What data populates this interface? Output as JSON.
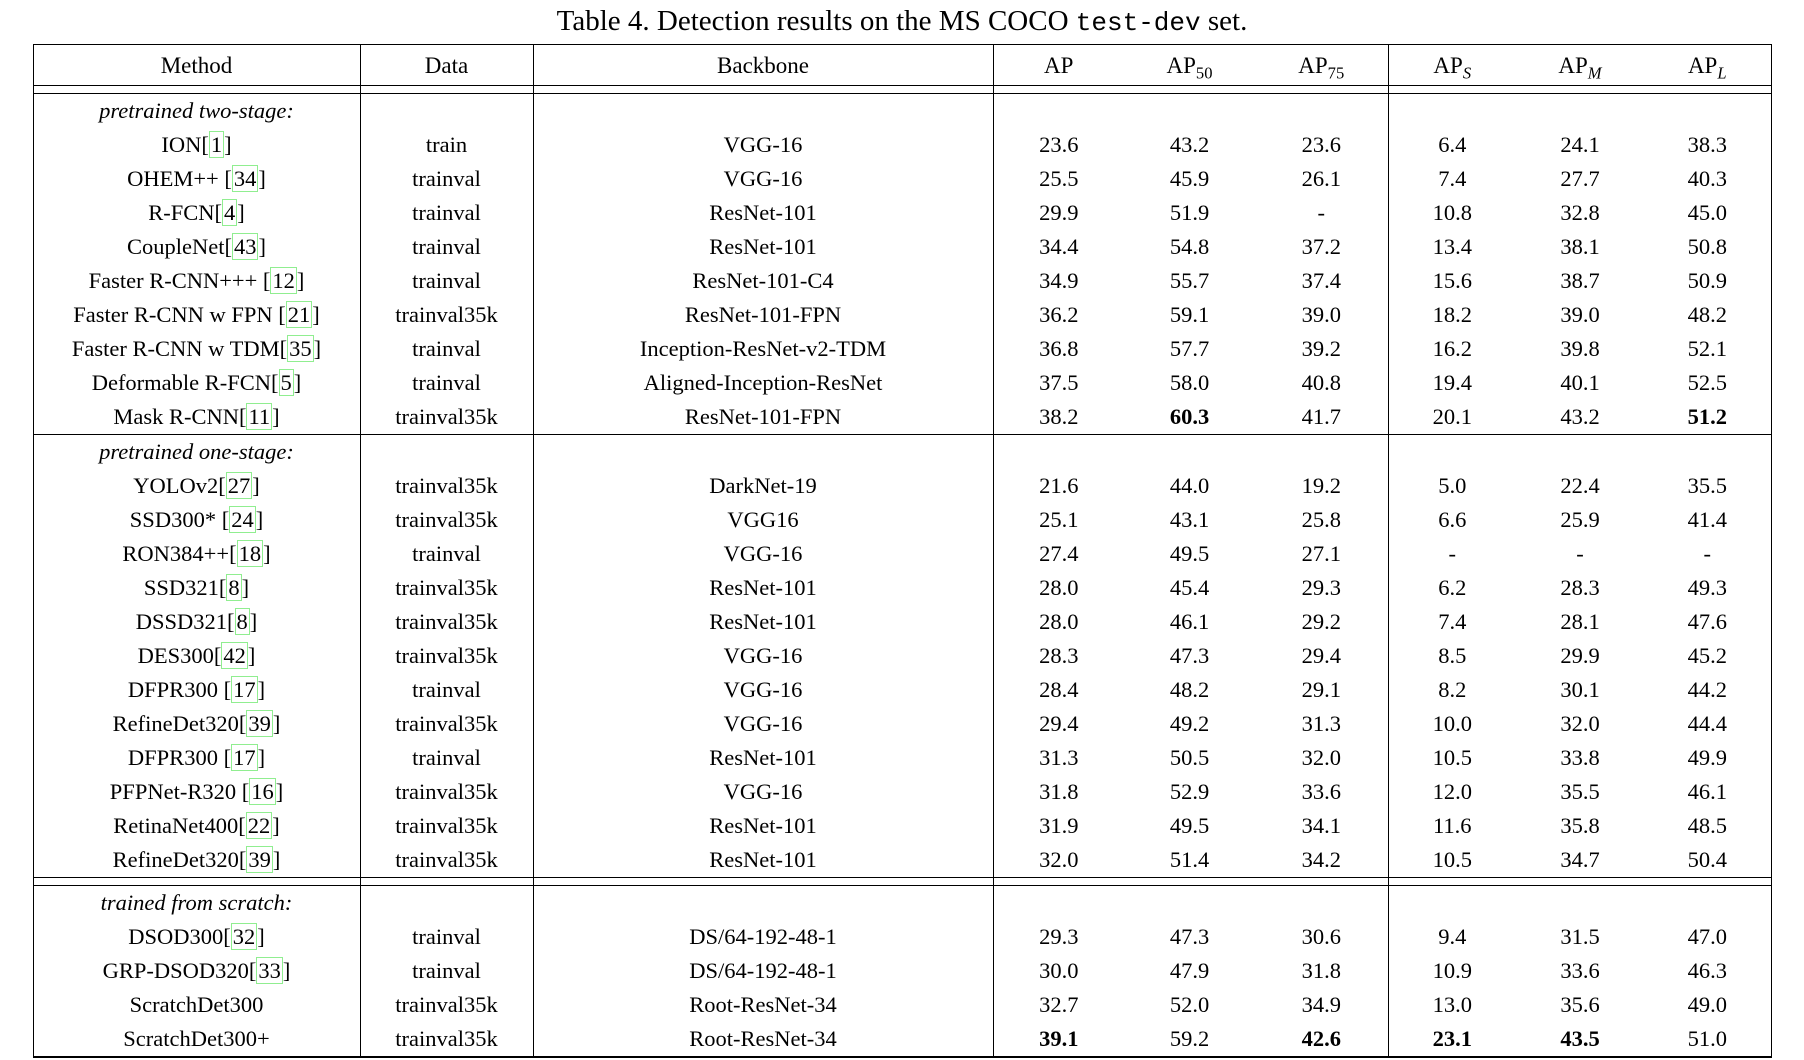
{
  "caption": {
    "prefix": "Table 4. Detection results on the MS COCO ",
    "code": "test-dev",
    "suffix": " set."
  },
  "colors": {
    "citation_box": "#90ee90",
    "rule": "#000000",
    "text": "#000000"
  },
  "table": {
    "columns": [
      {
        "label": "Method",
        "sub": ""
      },
      {
        "label": "Data",
        "sub": ""
      },
      {
        "label": "Backbone",
        "sub": ""
      },
      {
        "label": "AP",
        "sub": ""
      },
      {
        "label": "AP",
        "sub": "50",
        "sub_italic": false
      },
      {
        "label": "AP",
        "sub": "75",
        "sub_italic": false
      },
      {
        "label": "AP",
        "sub": "S",
        "sub_italic": true
      },
      {
        "label": "AP",
        "sub": "M",
        "sub_italic": true
      },
      {
        "label": "AP",
        "sub": "L",
        "sub_italic": true
      }
    ],
    "sections": [
      {
        "label": "pretrained two-stage:",
        "divider": "none",
        "rows": [
          {
            "method": "ION",
            "cite": "1",
            "data": "train",
            "backbone": "VGG-16",
            "values": [
              "23.6",
              "43.2",
              "23.6",
              "6.4",
              "24.1",
              "38.3"
            ],
            "bold": []
          },
          {
            "method": "OHEM++ ",
            "cite": "34",
            "data": "trainval",
            "backbone": "VGG-16",
            "values": [
              "25.5",
              "45.9",
              "26.1",
              "7.4",
              "27.7",
              "40.3"
            ],
            "bold": []
          },
          {
            "method": "R-FCN",
            "cite": "4",
            "data": "trainval",
            "backbone": "ResNet-101",
            "values": [
              "29.9",
              "51.9",
              "-",
              "10.8",
              "32.8",
              "45.0"
            ],
            "bold": []
          },
          {
            "method": "CoupleNet",
            "cite": "43",
            "data": "trainval",
            "backbone": "ResNet-101",
            "values": [
              "34.4",
              "54.8",
              "37.2",
              "13.4",
              "38.1",
              "50.8"
            ],
            "bold": []
          },
          {
            "method": "Faster R-CNN+++ ",
            "cite": "12",
            "data": "trainval",
            "backbone": "ResNet-101-C4",
            "values": [
              "34.9",
              "55.7",
              "37.4",
              "15.6",
              "38.7",
              "50.9"
            ],
            "bold": []
          },
          {
            "method": "Faster R-CNN w FPN ",
            "cite": "21",
            "data": "trainval35k",
            "backbone": "ResNet-101-FPN",
            "values": [
              "36.2",
              "59.1",
              "39.0",
              "18.2",
              "39.0",
              "48.2"
            ],
            "bold": []
          },
          {
            "method": "Faster R-CNN w TDM",
            "cite": "35",
            "data": "trainval",
            "backbone": "Inception-ResNet-v2-TDM",
            "values": [
              "36.8",
              "57.7",
              "39.2",
              "16.2",
              "39.8",
              "52.1"
            ],
            "bold": []
          },
          {
            "method": "Deformable R-FCN",
            "cite": "5",
            "data": "trainval",
            "backbone": "Aligned-Inception-ResNet",
            "values": [
              "37.5",
              "58.0",
              "40.8",
              "19.4",
              "40.1",
              "52.5"
            ],
            "bold": []
          },
          {
            "method": "Mask R-CNN",
            "cite": "11",
            "data": "trainval35k",
            "backbone": "ResNet-101-FPN",
            "values": [
              "38.2",
              "60.3",
              "41.7",
              "20.1",
              "43.2",
              "51.2"
            ],
            "bold": [
              1,
              5
            ]
          }
        ]
      },
      {
        "label": "pretrained one-stage:",
        "divider": "single",
        "rows": [
          {
            "method": "YOLOv2",
            "cite": "27",
            "data": "trainval35k",
            "backbone": "DarkNet-19",
            "values": [
              "21.6",
              "44.0",
              "19.2",
              "5.0",
              "22.4",
              "35.5"
            ],
            "bold": []
          },
          {
            "method": "SSD300* ",
            "cite": "24",
            "data": "trainval35k",
            "backbone": "VGG16",
            "values": [
              "25.1",
              "43.1",
              "25.8",
              "6.6",
              "25.9",
              "41.4"
            ],
            "bold": []
          },
          {
            "method": "RON384++",
            "cite": "18",
            "data": "trainval",
            "backbone": "VGG-16",
            "values": [
              "27.4",
              "49.5",
              "27.1",
              "-",
              "-",
              "-"
            ],
            "bold": []
          },
          {
            "method": "SSD321",
            "cite": "8",
            "data": "trainval35k",
            "backbone": "ResNet-101",
            "values": [
              "28.0",
              "45.4",
              "29.3",
              "6.2",
              "28.3",
              "49.3"
            ],
            "bold": []
          },
          {
            "method": "DSSD321",
            "cite": "8",
            "data": "trainval35k",
            "backbone": "ResNet-101",
            "values": [
              "28.0",
              "46.1",
              "29.2",
              "7.4",
              "28.1",
              "47.6"
            ],
            "bold": []
          },
          {
            "method": "DES300",
            "cite": "42",
            "data": "trainval35k",
            "backbone": "VGG-16",
            "values": [
              "28.3",
              "47.3",
              "29.4",
              "8.5",
              "29.9",
              "45.2"
            ],
            "bold": []
          },
          {
            "method": "DFPR300 ",
            "cite": "17",
            "data": "trainval",
            "backbone": "VGG-16",
            "values": [
              "28.4",
              "48.2",
              "29.1",
              "8.2",
              "30.1",
              "44.2"
            ],
            "bold": []
          },
          {
            "method": "RefineDet320",
            "cite": "39",
            "data": "trainval35k",
            "backbone": "VGG-16",
            "values": [
              "29.4",
              "49.2",
              "31.3",
              "10.0",
              "32.0",
              "44.4"
            ],
            "bold": []
          },
          {
            "method": "DFPR300 ",
            "cite": "17",
            "data": "trainval",
            "backbone": "ResNet-101",
            "values": [
              "31.3",
              "50.5",
              "32.0",
              "10.5",
              "33.8",
              "49.9"
            ],
            "bold": []
          },
          {
            "method": "PFPNet-R320 ",
            "cite": "16",
            "data": "trainval35k",
            "backbone": "VGG-16",
            "values": [
              "31.8",
              "52.9",
              "33.6",
              "12.0",
              "35.5",
              "46.1"
            ],
            "bold": []
          },
          {
            "method": "RetinaNet400",
            "cite": "22",
            "data": "trainval35k",
            "backbone": "ResNet-101",
            "values": [
              "31.9",
              "49.5",
              "34.1",
              "11.6",
              "35.8",
              "48.5"
            ],
            "bold": []
          },
          {
            "method": "RefineDet320",
            "cite": "39",
            "data": "trainval35k",
            "backbone": "ResNet-101",
            "values": [
              "32.0",
              "51.4",
              "34.2",
              "10.5",
              "34.7",
              "50.4"
            ],
            "bold": []
          }
        ]
      },
      {
        "label": "trained from scratch:",
        "divider": "double",
        "rows": [
          {
            "method": "DSOD300",
            "cite": "32",
            "data": "trainval",
            "backbone": "DS/64-192-48-1",
            "values": [
              "29.3",
              "47.3",
              "30.6",
              "9.4",
              "31.5",
              "47.0"
            ],
            "bold": []
          },
          {
            "method": "GRP-DSOD320",
            "cite": "33",
            "data": "trainval",
            "backbone": "DS/64-192-48-1",
            "values": [
              "30.0",
              "47.9",
              "31.8",
              "10.9",
              "33.6",
              "46.3"
            ],
            "bold": []
          },
          {
            "method": "ScratchDet300",
            "cite": null,
            "data": "trainval35k",
            "backbone": "Root-ResNet-34",
            "values": [
              "32.7",
              "52.0",
              "34.9",
              "13.0",
              "35.6",
              "49.0"
            ],
            "bold": []
          },
          {
            "method": "ScratchDet300+",
            "cite": null,
            "data": "trainval35k",
            "backbone": "Root-ResNet-34",
            "values": [
              "39.1",
              "59.2",
              "42.6",
              "23.1",
              "43.5",
              "51.0"
            ],
            "bold": [
              0,
              2,
              3,
              4
            ]
          }
        ]
      }
    ]
  }
}
